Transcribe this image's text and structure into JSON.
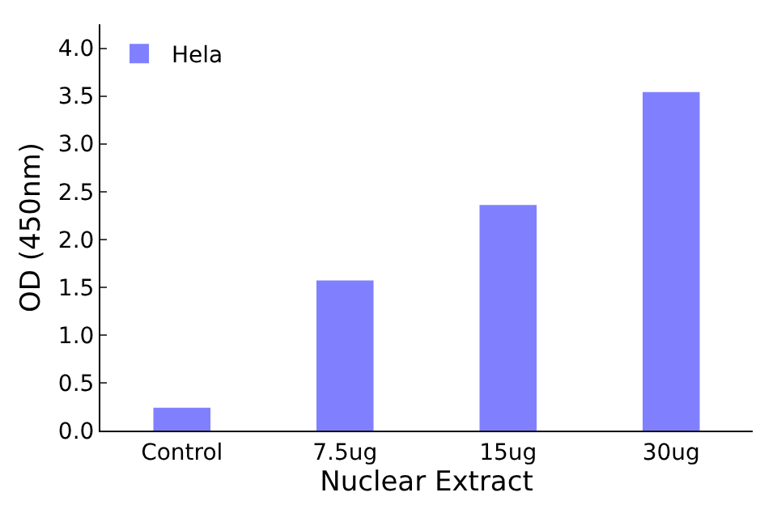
{
  "chart_data": {
    "type": "bar",
    "xlabel": "Nuclear Extract",
    "ylabel": "OD (450nm)",
    "categories": [
      "Control",
      "7.5ug",
      "15ug",
      "30ug"
    ],
    "series": [
      {
        "name": "Hela",
        "color": "#8080ff",
        "values": [
          0.24,
          1.57,
          2.36,
          3.54
        ]
      }
    ],
    "ylim": [
      0,
      4.25
    ],
    "yticks": [
      {
        "value": 0,
        "label": "0.0"
      },
      {
        "value": 0.5,
        "label": "0.5"
      },
      {
        "value": 1,
        "label": "1.0"
      },
      {
        "value": 1.5,
        "label": "1.5"
      },
      {
        "value": 2,
        "label": "2.0"
      },
      {
        "value": 2.5,
        "label": "2.5"
      },
      {
        "value": 3,
        "label": "3.0"
      },
      {
        "value": 3.5,
        "label": "3.5"
      },
      {
        "value": 4,
        "label": "4.0"
      }
    ],
    "grid": false,
    "legend": "top left"
  }
}
